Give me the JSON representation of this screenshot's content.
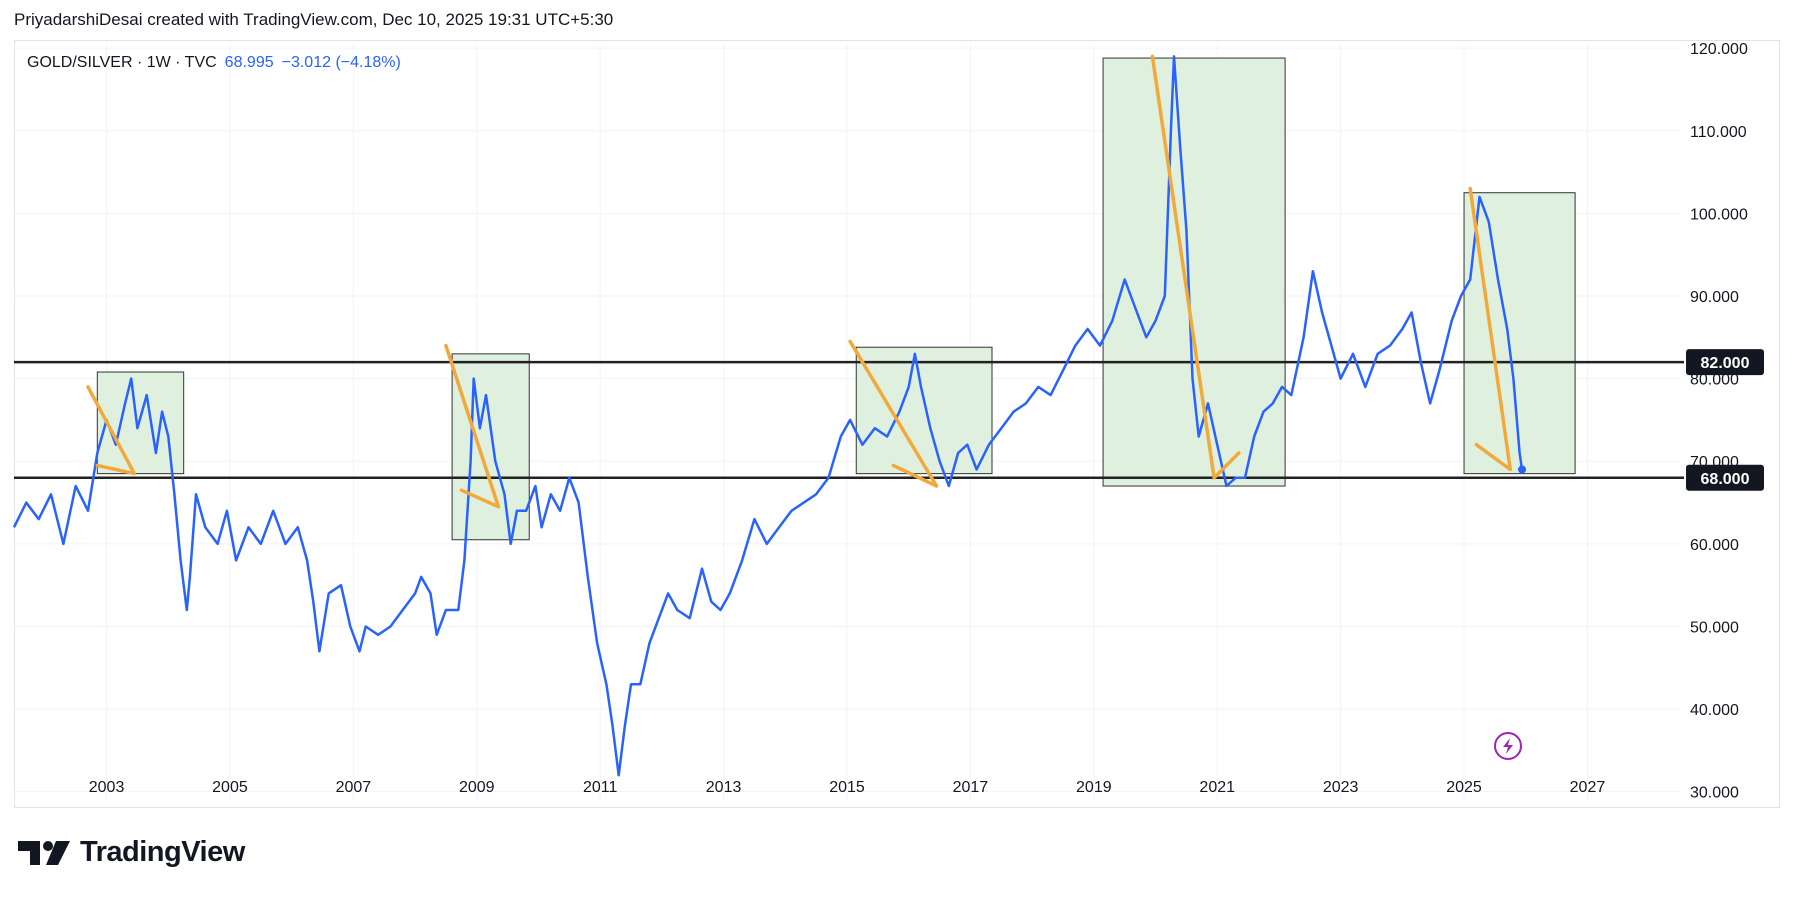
{
  "header": {
    "caption": "PriyadarshiDesai created with TradingView.com, Dec 10, 2025 19:31 UTC+5:30"
  },
  "legend": {
    "symbol": "GOLD/SILVER · 1W · TVC",
    "last": "68.995",
    "change": "−3.012 (−4.18%)"
  },
  "brand": {
    "name": "TradingView",
    "icon": "tradingview-logo-icon"
  },
  "overlay_icon": "lightning-icon",
  "colors": {
    "line": "#2962ff",
    "arrow": "#f2a93b",
    "box_fill": "#dff0de",
    "box_stroke": "#333333",
    "hline": "#222222",
    "grid": "#f0f3fa"
  },
  "chart_data": {
    "type": "line",
    "title": "GOLD/SILVER · 1W · TVC",
    "x_ticks": [
      "2003",
      "2005",
      "2007",
      "2009",
      "2011",
      "2013",
      "2015",
      "2017",
      "2019",
      "2021",
      "2023",
      "2025",
      "2027"
    ],
    "y_ticks": [
      "120.000",
      "110.000",
      "100.000",
      "90.000",
      "80.000",
      "70.000",
      "60.000",
      "50.000",
      "40.000",
      "30.000"
    ],
    "xlim": [
      2001.5,
      2028.5
    ],
    "ylim": [
      29,
      120.5
    ],
    "grid": true,
    "series": [
      {
        "points": [
          [
            2001.5,
            62
          ],
          [
            2001.7,
            65
          ],
          [
            2001.9,
            63
          ],
          [
            2002.1,
            66
          ],
          [
            2002.3,
            60
          ],
          [
            2002.5,
            67
          ],
          [
            2002.7,
            64
          ],
          [
            2002.85,
            71
          ],
          [
            2003.0,
            75
          ],
          [
            2003.15,
            72
          ],
          [
            2003.3,
            77
          ],
          [
            2003.4,
            80
          ],
          [
            2003.5,
            74
          ],
          [
            2003.65,
            78
          ],
          [
            2003.8,
            71
          ],
          [
            2003.9,
            76
          ],
          [
            2004.0,
            73
          ],
          [
            2004.1,
            66
          ],
          [
            2004.2,
            58
          ],
          [
            2004.3,
            52
          ],
          [
            2004.35,
            56
          ],
          [
            2004.45,
            66
          ],
          [
            2004.6,
            62
          ],
          [
            2004.8,
            60
          ],
          [
            2004.95,
            64
          ],
          [
            2005.1,
            58
          ],
          [
            2005.3,
            62
          ],
          [
            2005.5,
            60
          ],
          [
            2005.7,
            64
          ],
          [
            2005.9,
            60
          ],
          [
            2006.1,
            62
          ],
          [
            2006.25,
            58
          ],
          [
            2006.35,
            53
          ],
          [
            2006.45,
            47
          ],
          [
            2006.6,
            54
          ],
          [
            2006.8,
            55
          ],
          [
            2006.95,
            50
          ],
          [
            2007.1,
            47
          ],
          [
            2007.2,
            50
          ],
          [
            2007.4,
            49
          ],
          [
            2007.6,
            50
          ],
          [
            2007.8,
            52
          ],
          [
            2008.0,
            54
          ],
          [
            2008.1,
            56
          ],
          [
            2008.25,
            54
          ],
          [
            2008.35,
            49
          ],
          [
            2008.5,
            52
          ],
          [
            2008.7,
            52
          ],
          [
            2008.8,
            58
          ],
          [
            2008.9,
            70
          ],
          [
            2008.95,
            80
          ],
          [
            2009.05,
            74
          ],
          [
            2009.15,
            78
          ],
          [
            2009.3,
            70
          ],
          [
            2009.45,
            66
          ],
          [
            2009.55,
            60
          ],
          [
            2009.65,
            64
          ],
          [
            2009.8,
            64
          ],
          [
            2009.95,
            67
          ],
          [
            2010.05,
            62
          ],
          [
            2010.2,
            66
          ],
          [
            2010.35,
            64
          ],
          [
            2010.5,
            68
          ],
          [
            2010.65,
            65
          ],
          [
            2010.8,
            56
          ],
          [
            2010.95,
            48
          ],
          [
            2011.1,
            43
          ],
          [
            2011.2,
            38
          ],
          [
            2011.3,
            32
          ],
          [
            2011.4,
            38
          ],
          [
            2011.5,
            43
          ],
          [
            2011.65,
            43
          ],
          [
            2011.8,
            48
          ],
          [
            2011.95,
            51
          ],
          [
            2012.1,
            54
          ],
          [
            2012.25,
            52
          ],
          [
            2012.45,
            51
          ],
          [
            2012.65,
            57
          ],
          [
            2012.8,
            53
          ],
          [
            2012.95,
            52
          ],
          [
            2013.1,
            54
          ],
          [
            2013.3,
            58
          ],
          [
            2013.5,
            63
          ],
          [
            2013.7,
            60
          ],
          [
            2013.9,
            62
          ],
          [
            2014.1,
            64
          ],
          [
            2014.3,
            65
          ],
          [
            2014.5,
            66
          ],
          [
            2014.7,
            68
          ],
          [
            2014.9,
            73
          ],
          [
            2015.05,
            75
          ],
          [
            2015.25,
            72
          ],
          [
            2015.45,
            74
          ],
          [
            2015.65,
            73
          ],
          [
            2015.85,
            76
          ],
          [
            2016.0,
            79
          ],
          [
            2016.1,
            83
          ],
          [
            2016.2,
            79
          ],
          [
            2016.35,
            74
          ],
          [
            2016.5,
            70
          ],
          [
            2016.65,
            67
          ],
          [
            2016.8,
            71
          ],
          [
            2016.95,
            72
          ],
          [
            2017.1,
            69
          ],
          [
            2017.3,
            72
          ],
          [
            2017.5,
            74
          ],
          [
            2017.7,
            76
          ],
          [
            2017.9,
            77
          ],
          [
            2018.1,
            79
          ],
          [
            2018.3,
            78
          ],
          [
            2018.5,
            81
          ],
          [
            2018.7,
            84
          ],
          [
            2018.9,
            86
          ],
          [
            2019.1,
            84
          ],
          [
            2019.3,
            87
          ],
          [
            2019.5,
            92
          ],
          [
            2019.7,
            88
          ],
          [
            2019.85,
            85
          ],
          [
            2020.0,
            87
          ],
          [
            2020.15,
            90
          ],
          [
            2020.25,
            110
          ],
          [
            2020.3,
            119
          ],
          [
            2020.4,
            108
          ],
          [
            2020.5,
            98
          ],
          [
            2020.6,
            80
          ],
          [
            2020.7,
            73
          ],
          [
            2020.85,
            77
          ],
          [
            2021.0,
            72
          ],
          [
            2021.15,
            67
          ],
          [
            2021.3,
            68
          ],
          [
            2021.45,
            68
          ],
          [
            2021.6,
            73
          ],
          [
            2021.75,
            76
          ],
          [
            2021.9,
            77
          ],
          [
            2022.05,
            79
          ],
          [
            2022.2,
            78
          ],
          [
            2022.4,
            85
          ],
          [
            2022.55,
            93
          ],
          [
            2022.7,
            88
          ],
          [
            2022.85,
            84
          ],
          [
            2023.0,
            80
          ],
          [
            2023.2,
            83
          ],
          [
            2023.4,
            79
          ],
          [
            2023.6,
            83
          ],
          [
            2023.8,
            84
          ],
          [
            2024.0,
            86
          ],
          [
            2024.15,
            88
          ],
          [
            2024.3,
            82
          ],
          [
            2024.45,
            77
          ],
          [
            2024.6,
            81
          ],
          [
            2024.8,
            87
          ],
          [
            2024.95,
            90
          ],
          [
            2025.1,
            92
          ],
          [
            2025.25,
            102
          ],
          [
            2025.4,
            99
          ],
          [
            2025.55,
            92
          ],
          [
            2025.7,
            86
          ],
          [
            2025.8,
            80
          ],
          [
            2025.9,
            71
          ],
          [
            2025.94,
            69
          ]
        ]
      }
    ],
    "horizontal_lines": [
      {
        "value": 82,
        "label": "82.000"
      },
      {
        "value": 68,
        "label": "68.000"
      }
    ],
    "boxes": [
      {
        "x0": 2002.85,
        "x1": 2004.25,
        "y0": 68.5,
        "y1": 80.8
      },
      {
        "x0": 2008.6,
        "x1": 2009.85,
        "y0": 60.5,
        "y1": 83
      },
      {
        "x0": 2015.15,
        "x1": 2017.35,
        "y0": 68.5,
        "y1": 83.8
      },
      {
        "x0": 2019.15,
        "x1": 2022.1,
        "y0": 67,
        "y1": 118.8
      },
      {
        "x0": 2025.0,
        "x1": 2026.8,
        "y0": 68.5,
        "y1": 102.5
      }
    ],
    "arrows": [
      [
        [
          2002.7,
          79
        ],
        [
          2003.45,
          68.5
        ],
        [
          2002.85,
          69.5
        ]
      ],
      [
        [
          2008.5,
          84
        ],
        [
          2009.35,
          64.5
        ],
        [
          2008.75,
          66.5
        ]
      ],
      [
        [
          2015.05,
          84.5
        ],
        [
          2016.45,
          67
        ],
        [
          2015.75,
          69.5
        ]
      ],
      [
        [
          2019.95,
          119
        ],
        [
          2020.95,
          68
        ],
        [
          2021.35,
          71
        ]
      ],
      [
        [
          2025.1,
          103
        ],
        [
          2025.75,
          69
        ],
        [
          2025.2,
          72
        ]
      ]
    ]
  }
}
